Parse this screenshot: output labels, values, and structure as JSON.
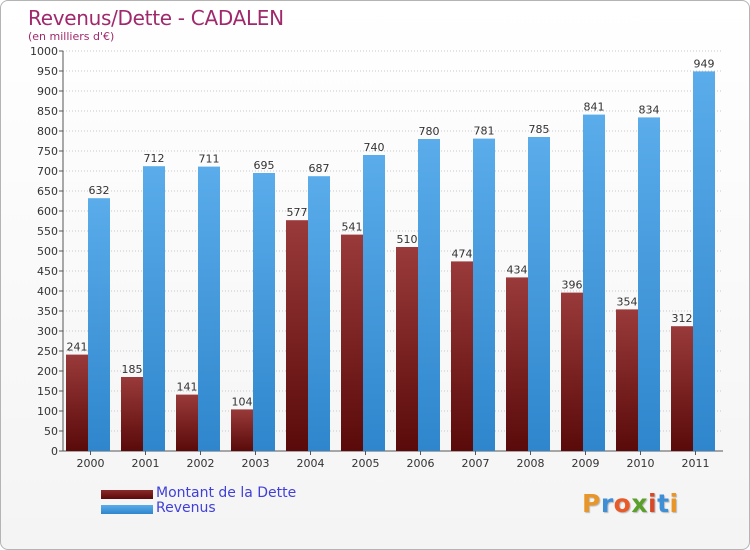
{
  "title": "Revenus/Dette - CADALEN",
  "subtitle": "(en milliers d'€)",
  "legend": {
    "debt_label": "Montant de la Dette",
    "revenue_label": "Revenus"
  },
  "logo": {
    "text": "Proxiti",
    "letter_colors": [
      "#e8962a",
      "#3f8fd6",
      "#e85a2a",
      "#5aa02a",
      "#d64a2a",
      "#3f8fd6",
      "#e8962a"
    ]
  },
  "colors": {
    "debt": "#7a1a1a",
    "revenue": "#4aa0e0",
    "title": "#a0296b",
    "legend_text": "#4040d8"
  },
  "chart_data": {
    "type": "bar",
    "title": "Revenus/Dette - CADALEN",
    "subtitle": "(en milliers d'€)",
    "categories": [
      "2000",
      "2001",
      "2002",
      "2003",
      "2004",
      "2005",
      "2006",
      "2007",
      "2008",
      "2009",
      "2010",
      "2011"
    ],
    "series": [
      {
        "name": "Montant de la Dette",
        "values": [
          241,
          185,
          141,
          104,
          577,
          541,
          510,
          474,
          434,
          396,
          354,
          312
        ]
      },
      {
        "name": "Revenus",
        "values": [
          632,
          712,
          711,
          695,
          687,
          740,
          780,
          781,
          785,
          841,
          834,
          949
        ]
      }
    ],
    "ylim": [
      0,
      1000
    ],
    "ytick_step": 50,
    "grid": true,
    "legend_position": "bottom-left"
  }
}
